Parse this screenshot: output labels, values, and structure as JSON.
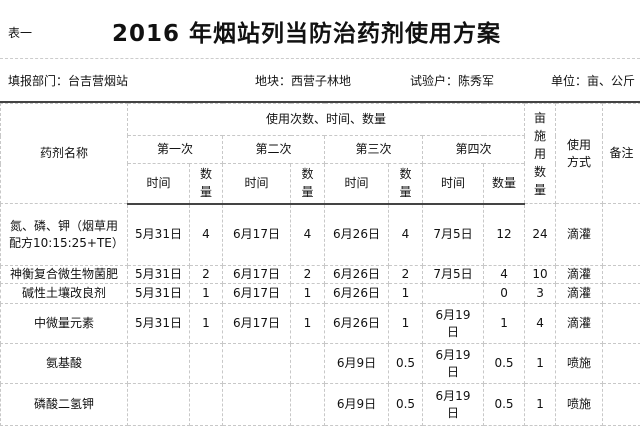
{
  "doc": {
    "label": "表一",
    "title": "2016 年烟站列当防治药剂使用方案"
  },
  "info": {
    "dept": "填报部门：台吉营烟站",
    "plot": "地块：西营子林地",
    "farmer": "试验户：陈秀军",
    "unit": "单位：亩、公斤"
  },
  "header": {
    "name": "药剂名称",
    "usage": "使用次数、时间、数量",
    "rounds": [
      "第一次",
      "第二次",
      "第三次",
      "第四次"
    ],
    "time": "时间",
    "qty": "数量",
    "per_mu": "亩施用数量",
    "method": "使用方式",
    "note": "备注"
  },
  "rows": [
    {
      "name": "氮、磷、钾（烟草用配方10:15:25+TE）",
      "t1": "5月31日",
      "q1": "4",
      "t2": "6月17日",
      "q2": "4",
      "t3": "6月26日",
      "q3": "4",
      "t4": "7月5日",
      "q4": "12",
      "mu": "24",
      "method": "滴灌",
      "note": ""
    },
    {
      "name": "神衡复合微生物菌肥",
      "t1": "5月31日",
      "q1": "2",
      "t2": "6月17日",
      "q2": "2",
      "t3": "6月26日",
      "q3": "2",
      "t4": "7月5日",
      "q4": "4",
      "mu": "10",
      "method": "滴灌",
      "note": ""
    },
    {
      "name": "碱性土壤改良剂",
      "t1": "5月31日",
      "q1": "1",
      "t2": "6月17日",
      "q2": "1",
      "t3": "6月26日",
      "q3": "1",
      "t4": "",
      "q4": "0",
      "mu": "3",
      "method": "滴灌",
      "note": ""
    },
    {
      "name": "中微量元素",
      "t1": "5月31日",
      "q1": "1",
      "t2": "6月17日",
      "q2": "1",
      "t3": "6月26日",
      "q3": "1",
      "t4": "6月19日",
      "q4": "1",
      "mu": "4",
      "method": "滴灌",
      "note": ""
    },
    {
      "name": "氨基酸",
      "t1": "",
      "q1": "",
      "t2": "",
      "q2": "",
      "t3": "6月9日",
      "q3": "0.5",
      "t4": "6月19日",
      "q4": "0.5",
      "mu": "1",
      "method": "喷施",
      "note": ""
    },
    {
      "name": "磷酸二氢钾",
      "t1": "",
      "q1": "",
      "t2": "",
      "q2": "",
      "t3": "6月9日",
      "q3": "0.5",
      "t4": "6月19日",
      "q4": "0.5",
      "mu": "1",
      "method": "喷施",
      "note": ""
    }
  ]
}
